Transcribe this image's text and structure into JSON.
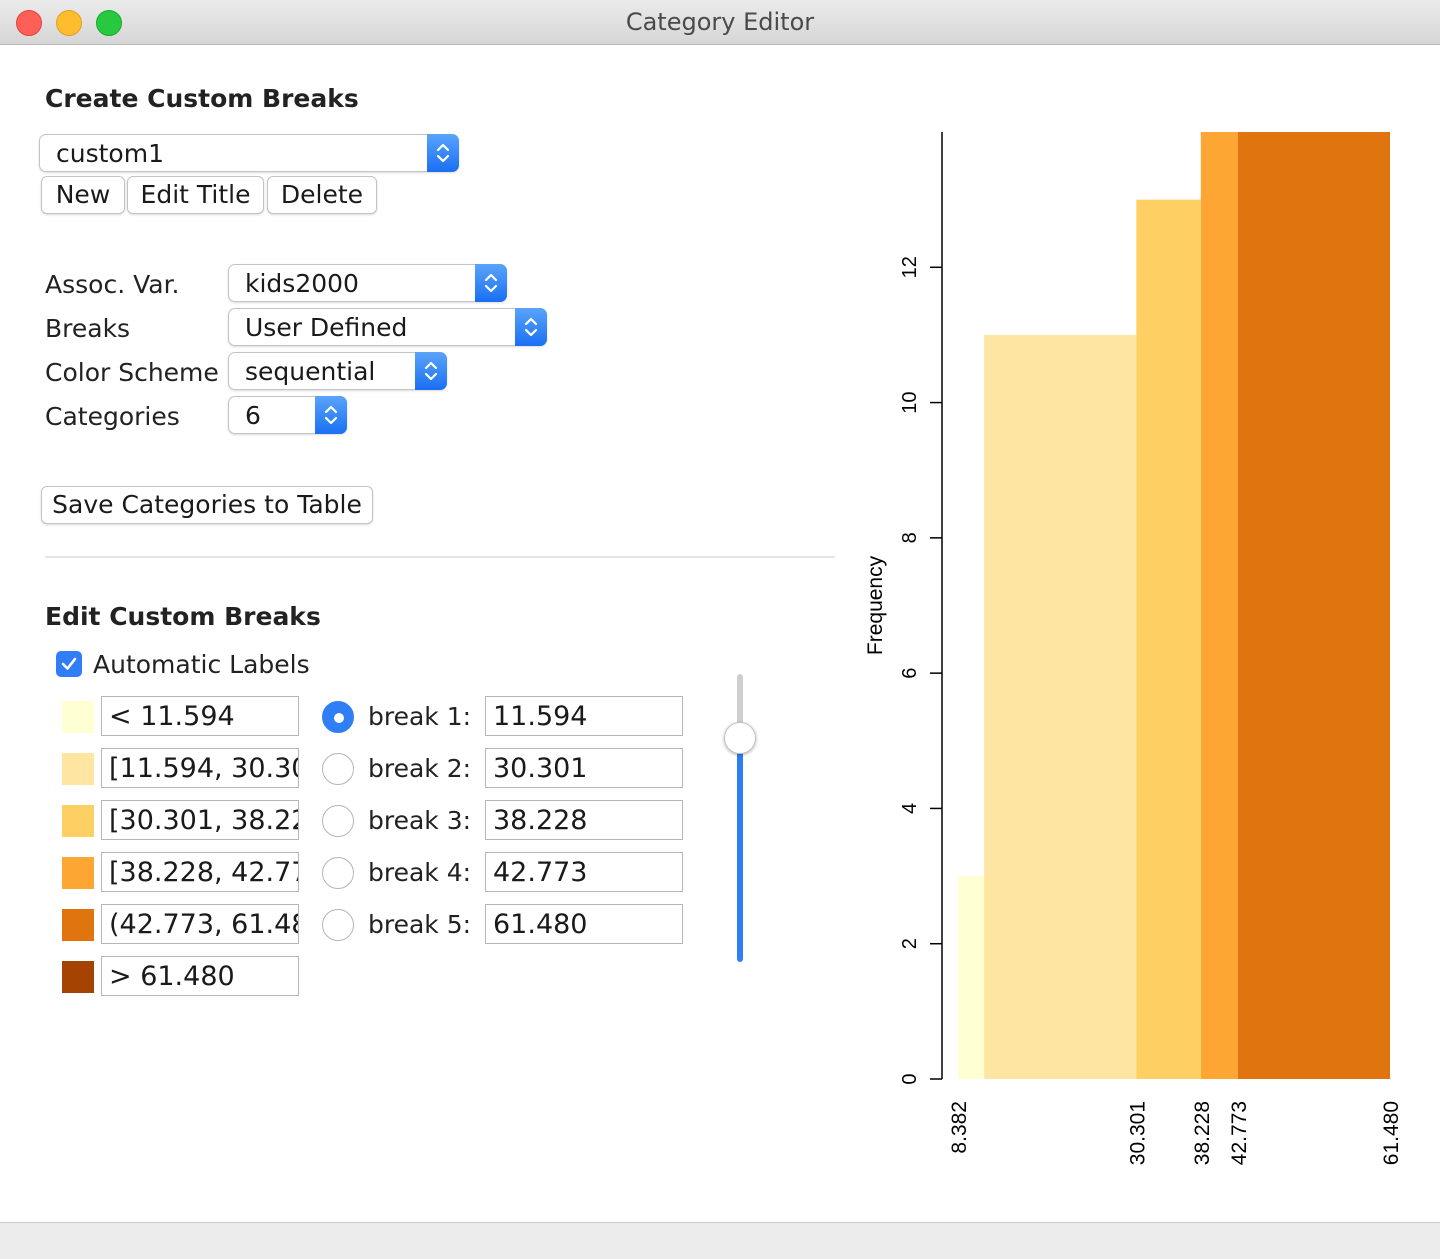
{
  "window": {
    "title": "Category Editor"
  },
  "create": {
    "heading": "Create Custom Breaks",
    "selected": "custom1",
    "buttons": {
      "new": "New",
      "edit_title": "Edit Title",
      "delete": "Delete"
    }
  },
  "settings": {
    "assoc_var_label": "Assoc. Var.",
    "assoc_var_value": "kids2000",
    "breaks_label": "Breaks",
    "breaks_value": "User Defined",
    "color_scheme_label": "Color Scheme",
    "color_scheme_value": "sequential",
    "categories_label": "Categories",
    "categories_value": "6"
  },
  "save_button": "Save Categories to Table",
  "edit": {
    "heading": "Edit Custom Breaks",
    "automatic_labels": "Automatic Labels",
    "automatic_labels_checked": true,
    "categories": [
      {
        "label": "< 11.594",
        "color": "#ffffd4"
      },
      {
        "label": "[11.594, 30.30",
        "color": "#fee6a2"
      },
      {
        "label": "[30.301, 38.22",
        "color": "#fed064"
      },
      {
        "label": "[38.228, 42.77",
        "color": "#fea634"
      },
      {
        "label": "(42.773, 61.48",
        "color": "#e0740f"
      },
      {
        "label": "> 61.480",
        "color": "#a54303"
      }
    ],
    "breaks": [
      {
        "label": "break 1:",
        "value": "11.594",
        "selected": true
      },
      {
        "label": "break 2:",
        "value": "30.301",
        "selected": false
      },
      {
        "label": "break 3:",
        "value": "38.228",
        "selected": false
      },
      {
        "label": "break 4:",
        "value": "42.773",
        "selected": false
      },
      {
        "label": "break 5:",
        "value": "61.480",
        "selected": false
      }
    ],
    "slider_value_fraction": 0.2
  },
  "chart_data": {
    "type": "bar",
    "title": "",
    "xlabel": "",
    "ylabel": "Frequency",
    "xlim": [
      8.382,
      61.48
    ],
    "ylim": [
      0,
      14
    ],
    "yticks": [
      0,
      2,
      4,
      6,
      8,
      10,
      12
    ],
    "xticks": [
      "8.382",
      "30.301",
      "38.228",
      "42.773",
      "61.480"
    ],
    "bins": [
      {
        "from": 8.382,
        "to": 11.594,
        "count": 3,
        "color": "#ffffd4"
      },
      {
        "from": 11.594,
        "to": 30.301,
        "count": 11,
        "color": "#fee6a2"
      },
      {
        "from": 30.301,
        "to": 38.228,
        "count": 13,
        "color": "#fed064"
      },
      {
        "from": 38.228,
        "to": 42.773,
        "count": 14,
        "color": "#fea634"
      },
      {
        "from": 42.773,
        "to": 61.48,
        "count": 14,
        "color": "#e0740f"
      }
    ]
  }
}
